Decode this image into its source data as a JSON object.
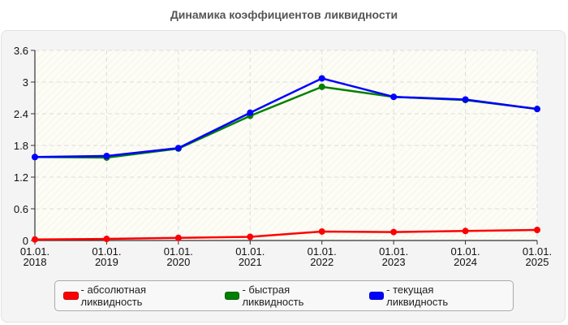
{
  "title": "Динамика коэффициентов ликвидности",
  "chart_data": {
    "type": "line",
    "title": "Динамика коэффициентов ликвидности",
    "xlabel": "",
    "ylabel": "",
    "categories": [
      "01.01.\n2018",
      "01.01.\n2019",
      "01.01.\n2020",
      "01.01.\n2021",
      "01.01.\n2022",
      "01.01.\n2023",
      "01.01.\n2024",
      "01.01.\n2025"
    ],
    "x_label_lines": [
      [
        "01.01.",
        "2018"
      ],
      [
        "01.01.",
        "2019"
      ],
      [
        "01.01.",
        "2020"
      ],
      [
        "01.01.",
        "2021"
      ],
      [
        "01.01.",
        "2022"
      ],
      [
        "01.01.",
        "2023"
      ],
      [
        "01.01.",
        "2024"
      ],
      [
        "01.01.",
        "2025"
      ]
    ],
    "ylim": [
      0,
      3.6
    ],
    "yticks": [
      0,
      0.6,
      1.2,
      1.8,
      2.4,
      3,
      3.6
    ],
    "ytick_labels": [
      "0",
      "0.6",
      "1.2",
      "1.8",
      "2.4",
      "3",
      "3.6"
    ],
    "grid": true,
    "legend_position": "bottom",
    "series": [
      {
        "name": "абсолютная ликвидность",
        "color": "#ff0000",
        "values": [
          0.02,
          0.03,
          0.05,
          0.07,
          0.17,
          0.16,
          0.18,
          0.2
        ]
      },
      {
        "name": "быстрая ликвидность",
        "color": "#008000",
        "values": [
          1.58,
          1.57,
          1.74,
          2.36,
          2.91,
          2.72,
          2.66,
          2.49
        ]
      },
      {
        "name": "текущая ликвидность",
        "color": "#0000ff",
        "values": [
          1.58,
          1.6,
          1.75,
          2.42,
          3.07,
          2.72,
          2.67,
          2.49
        ]
      }
    ]
  },
  "legend": {
    "items": [
      {
        "label": "- абсолютная ликвидность",
        "color": "#ff0000"
      },
      {
        "label": "- быстрая ликвидность",
        "color": "#008000"
      },
      {
        "label": "- текущая ликвидность",
        "color": "#0000ff"
      }
    ]
  }
}
